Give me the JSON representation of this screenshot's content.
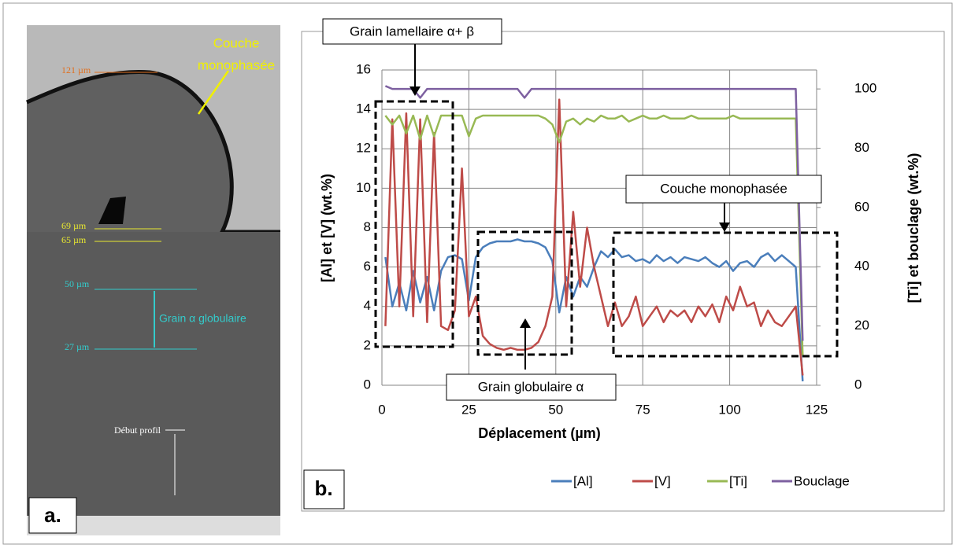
{
  "chart_data": {
    "type": "line",
    "x_label": "Déplacement (µm)",
    "y_label": "[Al] et [V] (wt.%)",
    "y2_label": "[Ti] et bouclage (wt.%)",
    "panel_label": "b.",
    "annotations": [
      "Grain lamellaire α+ β",
      "Couche monophasée",
      "Grain globulaire α"
    ],
    "x": [
      1,
      3,
      5,
      7,
      9,
      11,
      13,
      15,
      17,
      19,
      21,
      23,
      25,
      27,
      29,
      31,
      33,
      35,
      37,
      39,
      41,
      43,
      45,
      47,
      49,
      51,
      53,
      55,
      57,
      59,
      61,
      63,
      65,
      67,
      69,
      71,
      73,
      75,
      77,
      79,
      81,
      83,
      85,
      87,
      89,
      91,
      93,
      95,
      97,
      99,
      101,
      103,
      105,
      107,
      109,
      111,
      113,
      115,
      117,
      119,
      121
    ],
    "series": [
      {
        "name": "[Al]",
        "color": "#4a7ebb",
        "values": [
          6.5,
          4.0,
          5.2,
          3.8,
          5.8,
          4.2,
          5.5,
          3.8,
          5.8,
          6.5,
          6.6,
          6.4,
          4.3,
          6.5,
          7.0,
          7.2,
          7.3,
          7.3,
          7.3,
          7.4,
          7.3,
          7.3,
          7.2,
          7.0,
          6.3,
          3.7,
          5.5,
          4.5,
          5.5,
          5.0,
          6.0,
          6.8,
          6.5,
          6.9,
          6.5,
          6.6,
          6.3,
          6.4,
          6.2,
          6.6,
          6.3,
          6.5,
          6.2,
          6.5,
          6.4,
          6.3,
          6.5,
          6.2,
          6.0,
          6.3,
          5.8,
          6.2,
          6.3,
          6.0,
          6.5,
          6.7,
          6.3,
          6.6,
          6.3,
          6.0,
          0.2
        ]
      },
      {
        "name": "[V]",
        "color": "#be4b48",
        "values": [
          3.0,
          13.5,
          4.0,
          13.8,
          3.5,
          13.5,
          3.2,
          12.8,
          3.0,
          2.8,
          3.8,
          11.0,
          3.5,
          4.5,
          2.5,
          2.1,
          1.9,
          1.8,
          1.9,
          1.8,
          1.8,
          1.9,
          2.2,
          3.0,
          4.5,
          14.5,
          4.0,
          8.8,
          5.0,
          8.0,
          6.0,
          4.5,
          3.0,
          4.2,
          3.0,
          3.5,
          4.5,
          3.0,
          3.5,
          4.0,
          3.2,
          3.8,
          3.5,
          3.8,
          3.2,
          4.0,
          3.5,
          4.1,
          3.2,
          4.5,
          3.8,
          5.0,
          4.0,
          4.2,
          3.0,
          3.8,
          3.2,
          3.0,
          3.5,
          4.0,
          0.5
        ]
      },
      {
        "name": "[Ti]",
        "color": "#98b954",
        "axis": "y2",
        "values": [
          91,
          88,
          91,
          85,
          91,
          83,
          91,
          84,
          91,
          91,
          91,
          91,
          84,
          90,
          91,
          91,
          91,
          91,
          91,
          91,
          91,
          91,
          91,
          90,
          88,
          82,
          89,
          90,
          88,
          90,
          89,
          91,
          90,
          90,
          91,
          89,
          90,
          91,
          90,
          90,
          91,
          90,
          90,
          90,
          91,
          90,
          90,
          90,
          90,
          90,
          91,
          90,
          90,
          90,
          90,
          90,
          90,
          90,
          90,
          90,
          10
        ]
      },
      {
        "name": "Bouclage",
        "color": "#7d60a0",
        "axis": "y2",
        "values": [
          101,
          100,
          100,
          100,
          100,
          97,
          100,
          100,
          100,
          100,
          100,
          100,
          100,
          100,
          100,
          100,
          100,
          100,
          100,
          100,
          97,
          100,
          100,
          100,
          100,
          100,
          100,
          100,
          100,
          100,
          100,
          100,
          100,
          100,
          100,
          100,
          100,
          100,
          100,
          100,
          100,
          100,
          100,
          100,
          100,
          100,
          100,
          100,
          100,
          100,
          100,
          100,
          100,
          100,
          100,
          100,
          100,
          100,
          100,
          100,
          15
        ]
      }
    ],
    "xlim": [
      0,
      125
    ],
    "xticks": [
      0,
      25,
      50,
      75,
      100,
      125
    ],
    "ylim": [
      0,
      16
    ],
    "yticks": [
      0,
      2,
      4,
      6,
      8,
      10,
      12,
      14,
      16
    ],
    "y2lim": [
      0,
      106.4
    ],
    "y2ticks": [
      0,
      20,
      40,
      60,
      80,
      100
    ],
    "grid": true,
    "legend": "bottom"
  },
  "micrograph": {
    "panel_label": "a.",
    "labels": [
      "Couche",
      "monophasée",
      "121 µm",
      "69 µm",
      "65 µm",
      "50 µm",
      "Grain α globulaire",
      "27 µm",
      "Début profil"
    ]
  }
}
